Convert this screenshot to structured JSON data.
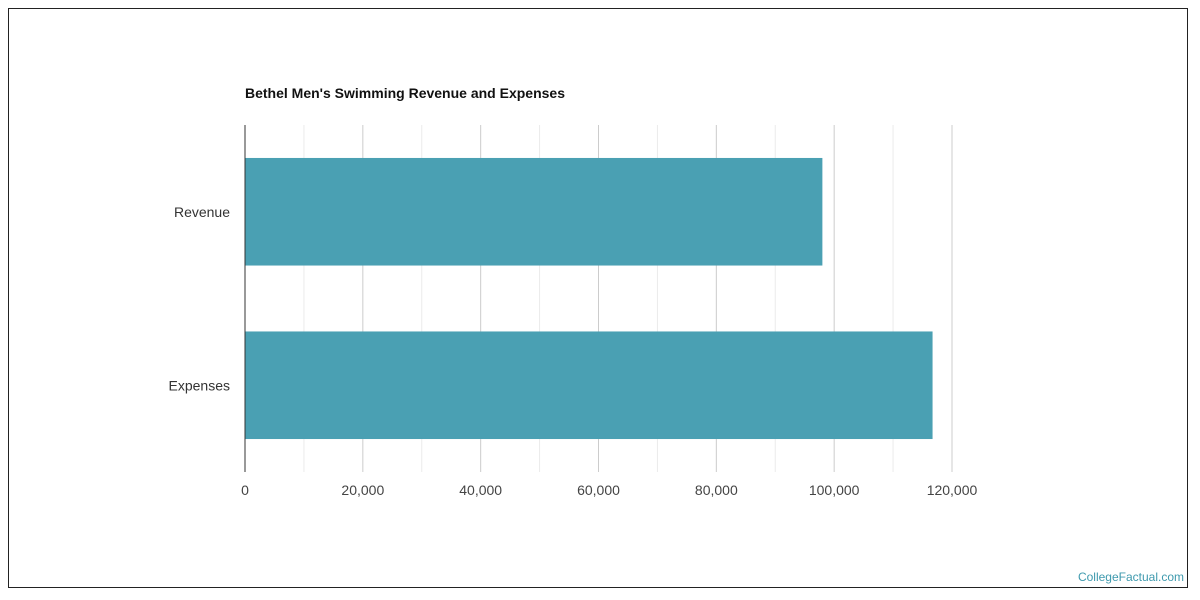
{
  "chart_data": {
    "type": "bar",
    "orientation": "horizontal",
    "title": "Bethel Men's Swimming Revenue and Expenses",
    "categories": [
      "Revenue",
      "Expenses"
    ],
    "values": [
      98000,
      116700
    ],
    "xlabel": "",
    "ylabel": "",
    "xlim": [
      0,
      120000
    ],
    "xticks": [
      "0",
      "20,000",
      "40,000",
      "60,000",
      "80,000",
      "100,000",
      "120,000"
    ],
    "grid": true,
    "bar_color": "#4aa0b3"
  },
  "credit": "CollegeFactual.com"
}
